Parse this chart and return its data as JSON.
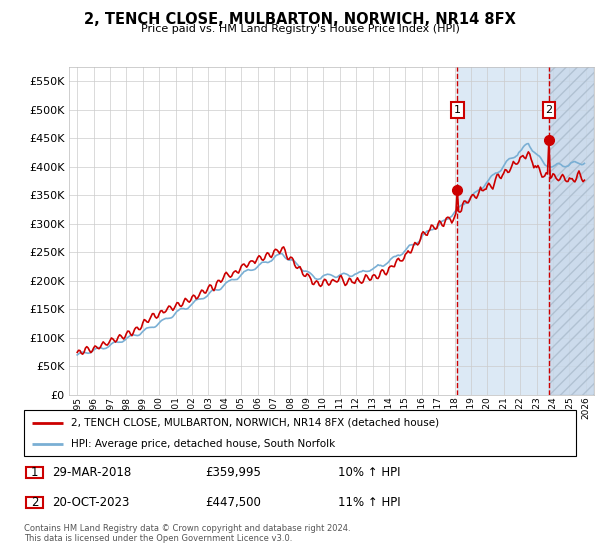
{
  "title": "2, TENCH CLOSE, MULBARTON, NORWICH, NR14 8FX",
  "subtitle": "Price paid vs. HM Land Registry's House Price Index (HPI)",
  "legend_line1": "2, TENCH CLOSE, MULBARTON, NORWICH, NR14 8FX (detached house)",
  "legend_line2": "HPI: Average price, detached house, South Norfolk",
  "footnote": "Contains HM Land Registry data © Crown copyright and database right 2024.\nThis data is licensed under the Open Government Licence v3.0.",
  "sale1_date": "29-MAR-2018",
  "sale1_price": "£359,995",
  "sale1_hpi": "10% ↑ HPI",
  "sale2_date": "20-OCT-2023",
  "sale2_price": "£447,500",
  "sale2_hpi": "11% ↑ HPI",
  "hpi_color": "#7aafd4",
  "price_color": "#cc0000",
  "ylim": [
    0,
    575000
  ],
  "yticks": [
    0,
    50000,
    100000,
    150000,
    200000,
    250000,
    300000,
    350000,
    400000,
    450000,
    500000,
    550000
  ],
  "x_start_year": 1995,
  "x_end_year": 2026,
  "sale1_year": 2018,
  "sale1_month": 3,
  "sale1_price_val": 359995,
  "sale2_year": 2023,
  "sale2_month": 10,
  "sale2_price_val": 447500,
  "shade_color": "#dce9f5",
  "hatch_color": "#c8d8ea"
}
